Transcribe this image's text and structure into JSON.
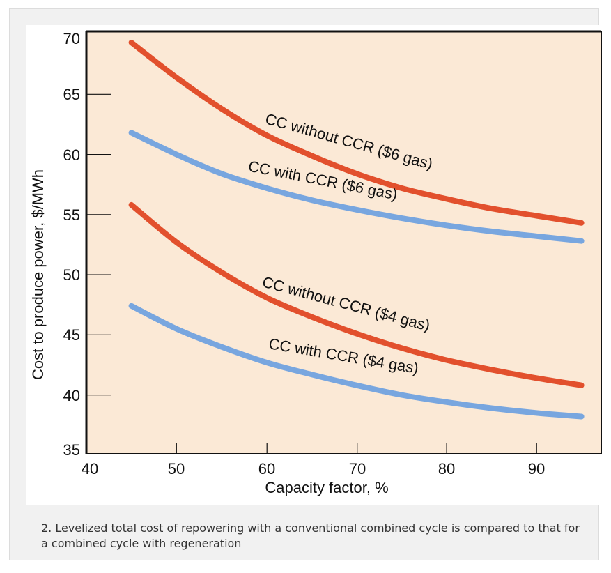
{
  "figure": {
    "caption": "2. Levelized total cost of repowering with a conventional combined cycle is compared to that for a combined cycle with regeneration"
  },
  "colors": {
    "plot_background": "#fbe9d6",
    "red_series": "#e2502d",
    "blue_series": "#78a6df",
    "axis": "#111111"
  },
  "chart_data": {
    "type": "line",
    "title": "",
    "xlabel": "Capacity factor, %",
    "ylabel": "Cost to produce power, $/MWh",
    "xlim": [
      40,
      95
    ],
    "ylim": [
      35,
      70
    ],
    "xticks": [
      "40",
      "50",
      "60",
      "70",
      "80",
      "90"
    ],
    "yticks": [
      "35",
      "40",
      "45",
      "50",
      "55",
      "60",
      "65",
      "70"
    ],
    "grid": false,
    "series": [
      {
        "name": "CC without CCR ($6 gas)",
        "color": "red",
        "x": [
          45,
          50,
          55,
          60,
          65,
          70,
          75,
          80,
          85,
          90,
          95
        ],
        "y": [
          69.2,
          66.3,
          63.7,
          61.5,
          59.8,
          58.3,
          57.1,
          56.2,
          55.4,
          54.8,
          54.2
        ]
      },
      {
        "name": "CC with CCR ($6 gas)",
        "color": "blue",
        "x": [
          45,
          50,
          55,
          60,
          65,
          70,
          75,
          80,
          85,
          90,
          95
        ],
        "y": [
          61.7,
          59.9,
          58.3,
          57.1,
          56.1,
          55.3,
          54.6,
          54.0,
          53.5,
          53.1,
          52.7
        ]
      },
      {
        "name": "CC without CCR ($4 gas)",
        "color": "red",
        "x": [
          45,
          50,
          55,
          60,
          65,
          70,
          75,
          80,
          85,
          90,
          95
        ],
        "y": [
          55.7,
          52.6,
          50.1,
          48.0,
          46.4,
          45.0,
          43.8,
          42.8,
          42.0,
          41.3,
          40.7
        ]
      },
      {
        "name": "CC with CCR ($4 gas)",
        "color": "blue",
        "x": [
          45,
          50,
          55,
          60,
          65,
          70,
          75,
          80,
          85,
          90,
          95
        ],
        "y": [
          47.3,
          45.4,
          43.9,
          42.6,
          41.6,
          40.7,
          39.9,
          39.3,
          38.8,
          38.4,
          38.1
        ]
      }
    ]
  }
}
